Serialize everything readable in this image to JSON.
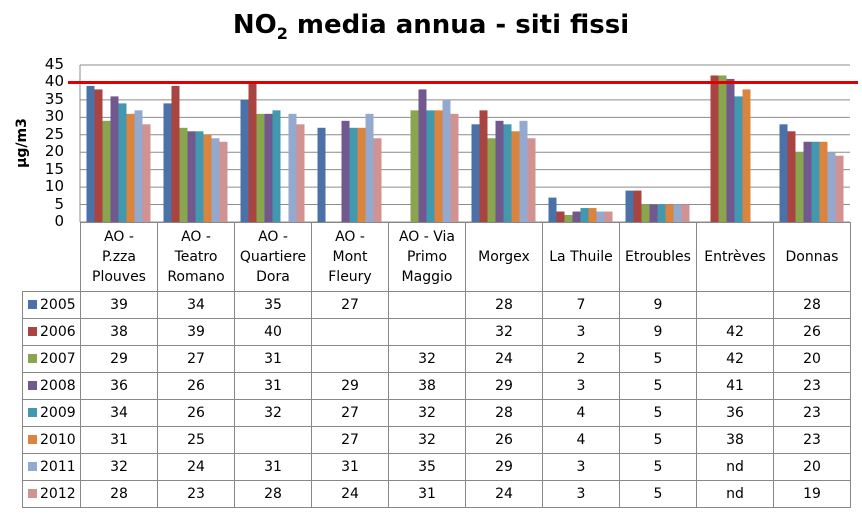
{
  "chart_data": {
    "type": "bar",
    "title": "NO2 media annua - siti fissi",
    "title_main": "NO",
    "title_sub": "2",
    "title_rest": " media annua - siti fissi",
    "xlabel": "",
    "ylabel": "µg/m3",
    "ylim": [
      0,
      45
    ],
    "yticks": [
      0,
      5,
      10,
      15,
      20,
      25,
      30,
      35,
      40,
      45
    ],
    "grid": true,
    "legend_position": "data-table",
    "reference_line": {
      "value": 40,
      "color": "#e00000"
    },
    "categories": [
      "AO - P.zza Plouves",
      "AO - Teatro Romano",
      "AO - Quartiere Dora",
      "AO - Mont Fleury",
      "AO - Via Primo Maggio",
      "Morgex",
      "La Thuile",
      "Etroubles",
      "Entrèves",
      "Donnas"
    ],
    "category_lines": [
      [
        "AO -",
        "P.zza",
        "Plouves"
      ],
      [
        "AO -",
        "Teatro",
        "Romano"
      ],
      [
        "AO -",
        "Quartiere",
        "Dora"
      ],
      [
        "AO -",
        "Mont",
        "Fleury"
      ],
      [
        "AO - Via",
        "Primo",
        "Maggio"
      ],
      [
        "Morgex"
      ],
      [
        "La Thuile"
      ],
      [
        "Etroubles"
      ],
      [
        "Entrèves"
      ],
      [
        "Donnas"
      ]
    ],
    "series": [
      {
        "name": "2005",
        "color": "#4a72a8",
        "values": [
          39,
          34,
          35,
          27,
          null,
          28,
          7,
          9,
          null,
          28
        ]
      },
      {
        "name": "2006",
        "color": "#a94441",
        "values": [
          38,
          39,
          40,
          null,
          null,
          32,
          3,
          9,
          42,
          26
        ]
      },
      {
        "name": "2007",
        "color": "#89a54e",
        "values": [
          29,
          27,
          31,
          null,
          32,
          24,
          2,
          5,
          42,
          20
        ]
      },
      {
        "name": "2008",
        "color": "#71588f",
        "values": [
          36,
          26,
          31,
          29,
          38,
          29,
          3,
          5,
          41,
          23
        ]
      },
      {
        "name": "2009",
        "color": "#4198af",
        "values": [
          34,
          26,
          32,
          27,
          32,
          28,
          4,
          5,
          36,
          23
        ]
      },
      {
        "name": "2010",
        "color": "#db843d",
        "values": [
          31,
          25,
          null,
          27,
          32,
          26,
          4,
          5,
          38,
          23
        ]
      },
      {
        "name": "2011",
        "color": "#93a9cf",
        "values": [
          32,
          24,
          31,
          31,
          35,
          29,
          3,
          5,
          "nd",
          20
        ]
      },
      {
        "name": "2012",
        "color": "#d19392",
        "values": [
          28,
          23,
          28,
          24,
          31,
          24,
          3,
          5,
          "nd",
          19
        ]
      }
    ]
  }
}
